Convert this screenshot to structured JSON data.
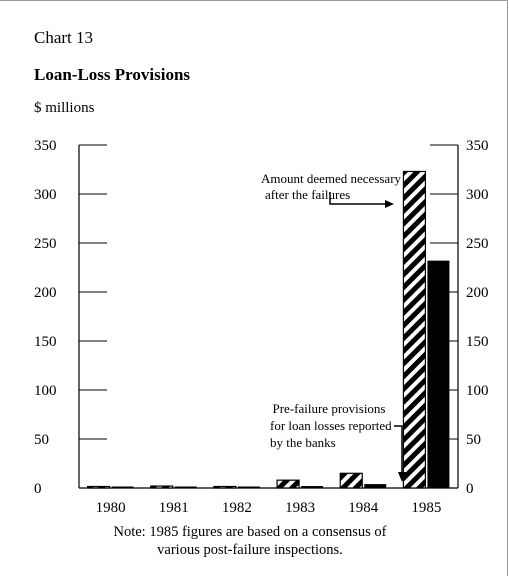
{
  "header": {
    "chart_number": "Chart 13",
    "title": "Loan-Loss Provisions",
    "unit": "$ millions"
  },
  "annotations": {
    "deemed": [
      "Amount deemed necessary",
      "after the failures"
    ],
    "pre_failure": [
      "Pre-failure provisions",
      "for loan losses reported",
      "by the banks"
    ]
  },
  "note": [
    "Note: 1985 figures are based on a consensus of",
    "various post-failure inspections."
  ],
  "chart_data": {
    "type": "bar",
    "title": "Loan-Loss Provisions",
    "ylabel": "$ millions",
    "xlabel": "",
    "categories": [
      "1980",
      "1981",
      "1982",
      "1983",
      "1984",
      "1985"
    ],
    "series": [
      {
        "name": "Amount deemed necessary after the failures",
        "values": [
          0,
          2,
          0,
          8,
          15,
          323
        ],
        "pattern": "hatched"
      },
      {
        "name": "Pre-failure provisions for loan losses reported by the banks",
        "values": [
          0,
          1,
          1,
          2,
          4,
          232
        ],
        "pattern": "solid"
      }
    ],
    "ylim": [
      0,
      350
    ],
    "yticks": [
      0,
      50,
      100,
      150,
      200,
      250,
      300,
      350
    ],
    "ytick_labels": [
      "0",
      "50",
      "100",
      "150",
      "200",
      "250",
      "300",
      "350"
    ],
    "right_axis": true,
    "grid": false,
    "legend": "none",
    "colors": {
      "bar_fill": "#000000",
      "hatch_bg": "#ffffff"
    }
  }
}
